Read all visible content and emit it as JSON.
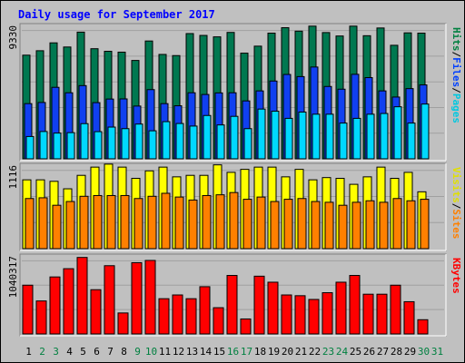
{
  "chart_data": [
    {
      "type": "bar",
      "title": "Daily usage for September 2017",
      "ylabel_max": "9330",
      "legend": [
        {
          "label": "Pages",
          "color": "#00c8e0"
        },
        {
          "label": "Files",
          "color": "#0040ff"
        },
        {
          "label": "Hits",
          "color": "#008040"
        }
      ],
      "legend_separator": "/",
      "ymax": 9330,
      "categories": [
        "1",
        "2",
        "3",
        "4",
        "5",
        "6",
        "7",
        "8",
        "9",
        "10",
        "11",
        "12",
        "13",
        "14",
        "15",
        "16",
        "17",
        "18",
        "19",
        "20",
        "21",
        "22",
        "23",
        "24",
        "25",
        "26",
        "27",
        "28",
        "29",
        "30",
        "31"
      ],
      "series": [
        {
          "name": "Hits",
          "color": "#007850",
          "values": [
            7250,
            7560,
            8110,
            7820,
            8860,
            7700,
            7520,
            7460,
            6880,
            8240,
            7300,
            7220,
            8760,
            8630,
            8530,
            8840,
            7390,
            7880,
            8790,
            9170,
            8930,
            9280,
            8830,
            8590,
            9280,
            8610,
            9150,
            7940,
            8810,
            8790,
            null
          ]
        },
        {
          "name": "Files",
          "color": "#1040f0",
          "values": [
            3860,
            3940,
            5000,
            4620,
            5120,
            3930,
            4180,
            4190,
            3690,
            4840,
            3860,
            3710,
            4620,
            4500,
            4610,
            4620,
            4050,
            4750,
            5440,
            5900,
            5750,
            6420,
            5060,
            4870,
            5910,
            5680,
            4750,
            4320,
            4910,
            5170,
            null
          ]
        },
        {
          "name": "Pages",
          "color": "#00d8ff",
          "values": [
            1560,
            1910,
            1800,
            1830,
            2460,
            1900,
            2220,
            2110,
            2430,
            1960,
            2600,
            2470,
            2290,
            3030,
            2370,
            2970,
            2110,
            3480,
            3330,
            2830,
            3270,
            3120,
            3120,
            2500,
            2830,
            3120,
            3170,
            3640,
            2500,
            3830,
            null
          ]
        }
      ]
    },
    {
      "type": "bar",
      "ylabel_max": "1116",
      "legend": [
        {
          "label": "Sites",
          "color": "#ff8000"
        },
        {
          "label": "Visits",
          "color": "#e0e000"
        }
      ],
      "legend_separator": "/",
      "ymax": 1116,
      "categories": [
        "1",
        "2",
        "3",
        "4",
        "5",
        "6",
        "7",
        "8",
        "9",
        "10",
        "11",
        "12",
        "13",
        "14",
        "15",
        "16",
        "17",
        "18",
        "19",
        "20",
        "21",
        "22",
        "23",
        "24",
        "25",
        "26",
        "27",
        "28",
        "29",
        "30",
        "31"
      ],
      "series": [
        {
          "name": "Visits",
          "color": "#ffff00",
          "values": [
            920,
            920,
            900,
            800,
            980,
            1090,
            1130,
            1090,
            940,
            1040,
            1090,
            960,
            980,
            980,
            1120,
            1020,
            1060,
            1090,
            1090,
            960,
            1060,
            920,
            950,
            940,
            860,
            960,
            1090,
            940,
            1020,
            760,
            null
          ]
        },
        {
          "name": "Sites",
          "color": "#ff8000",
          "values": [
            670,
            680,
            580,
            630,
            700,
            710,
            710,
            710,
            670,
            700,
            740,
            690,
            650,
            710,
            720,
            750,
            660,
            690,
            630,
            660,
            670,
            630,
            620,
            580,
            620,
            640,
            620,
            670,
            640,
            660,
            null
          ]
        }
      ]
    },
    {
      "type": "bar",
      "ylabel_max": "1040317",
      "legend": [
        {
          "label": "KBytes",
          "color": "#ff0000"
        }
      ],
      "ymax": 1040317,
      "categories": [
        "1",
        "2",
        "3",
        "4",
        "5",
        "6",
        "7",
        "8",
        "9",
        "10",
        "11",
        "12",
        "13",
        "14",
        "15",
        "16",
        "17",
        "18",
        "19",
        "20",
        "21",
        "22",
        "23",
        "24",
        "25",
        "26",
        "27",
        "28",
        "29",
        "30",
        "31"
      ],
      "series": [
        {
          "name": "KBytes",
          "color": "#ff0000",
          "values": [
            650000,
            440000,
            760000,
            870000,
            1020000,
            590000,
            910000,
            280000,
            950000,
            980000,
            470000,
            520000,
            470000,
            630000,
            350000,
            780000,
            200000,
            770000,
            690000,
            520000,
            510000,
            460000,
            550000,
            690000,
            780000,
            530000,
            530000,
            650000,
            430000,
            190000,
            null
          ]
        }
      ]
    }
  ],
  "x_labels": [
    {
      "text": "1",
      "color": "#000000"
    },
    {
      "text": "2",
      "color": "#008040"
    },
    {
      "text": "3",
      "color": "#008040"
    },
    {
      "text": "4",
      "color": "#000000"
    },
    {
      "text": "5",
      "color": "#000000"
    },
    {
      "text": "6",
      "color": "#000000"
    },
    {
      "text": "7",
      "color": "#000000"
    },
    {
      "text": "8",
      "color": "#000000"
    },
    {
      "text": "9",
      "color": "#008040"
    },
    {
      "text": "10",
      "color": "#008040"
    },
    {
      "text": "11",
      "color": "#000000"
    },
    {
      "text": "12",
      "color": "#000000"
    },
    {
      "text": "13",
      "color": "#000000"
    },
    {
      "text": "14",
      "color": "#000000"
    },
    {
      "text": "15",
      "color": "#000000"
    },
    {
      "text": "16",
      "color": "#008040"
    },
    {
      "text": "17",
      "color": "#008040"
    },
    {
      "text": "18",
      "color": "#000000"
    },
    {
      "text": "19",
      "color": "#000000"
    },
    {
      "text": "20",
      "color": "#000000"
    },
    {
      "text": "21",
      "color": "#000000"
    },
    {
      "text": "22",
      "color": "#000000"
    },
    {
      "text": "23",
      "color": "#008040"
    },
    {
      "text": "24",
      "color": "#008040"
    },
    {
      "text": "25",
      "color": "#000000"
    },
    {
      "text": "26",
      "color": "#000000"
    },
    {
      "text": "27",
      "color": "#000000"
    },
    {
      "text": "28",
      "color": "#000000"
    },
    {
      "text": "29",
      "color": "#000000"
    },
    {
      "text": "30",
      "color": "#008040"
    },
    {
      "text": "31",
      "color": "#008040"
    }
  ],
  "colors": {
    "background": "#ffffff",
    "frame": "#c0c0c0",
    "plot_bg": "#c0c0c0",
    "gridline": "#a0a0a0",
    "title": "#0000ff",
    "bar_outline": "#000000"
  }
}
